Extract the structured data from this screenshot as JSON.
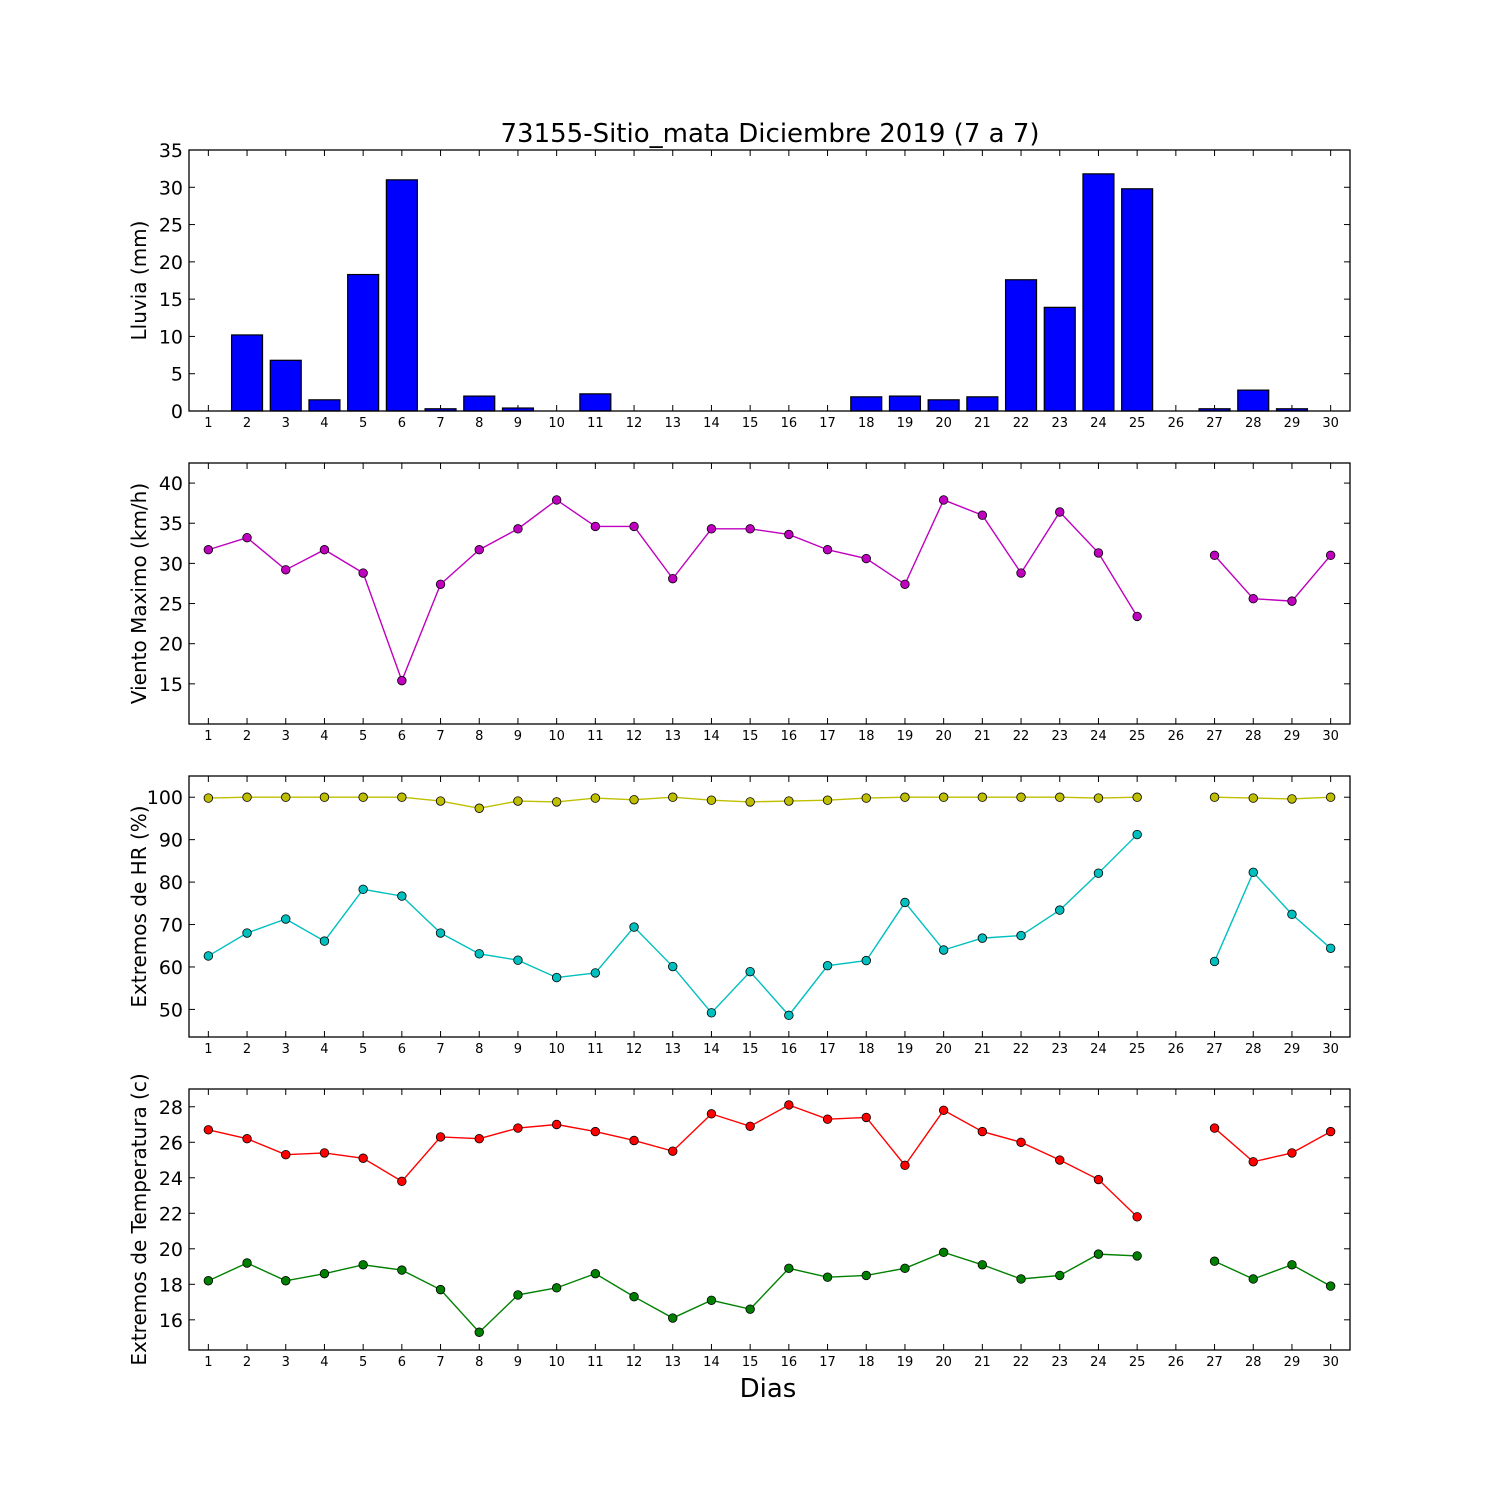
{
  "title": "73155-Sitio_mata Diciembre 2019  (7 a 7)",
  "xlabel": "Dias",
  "chart_data": [
    {
      "type": "bar",
      "ylabel": "Lluvia (mm)",
      "ylim": [
        0,
        35
      ],
      "yticks": [
        0,
        5,
        10,
        15,
        20,
        25,
        30,
        35
      ],
      "categories": [
        1,
        2,
        3,
        4,
        5,
        6,
        7,
        8,
        9,
        10,
        11,
        12,
        13,
        14,
        15,
        16,
        17,
        18,
        19,
        20,
        21,
        22,
        23,
        24,
        25,
        26,
        27,
        28,
        29,
        30
      ],
      "series": [
        {
          "color": "#0000ff",
          "values": [
            0,
            10.2,
            6.8,
            1.5,
            18.3,
            31.0,
            0.3,
            2.0,
            0.4,
            0,
            2.3,
            0,
            0,
            0,
            0,
            0,
            0,
            1.9,
            2.0,
            1.5,
            1.9,
            17.6,
            13.9,
            31.8,
            29.8,
            0,
            0.3,
            2.8,
            0.3,
            0
          ]
        }
      ]
    },
    {
      "type": "line",
      "ylabel": "Viento Maximo (km/h)",
      "ylim": [
        10,
        42.5
      ],
      "yticks": [
        15,
        20,
        25,
        30,
        35,
        40
      ],
      "x": [
        1,
        2,
        3,
        4,
        5,
        6,
        7,
        8,
        9,
        10,
        11,
        12,
        13,
        14,
        15,
        16,
        17,
        18,
        19,
        20,
        21,
        22,
        23,
        24,
        25,
        26,
        27,
        28,
        29,
        30
      ],
      "series": [
        {
          "color": "#bf00bf",
          "values": [
            31.7,
            33.2,
            29.2,
            31.7,
            28.8,
            15.4,
            27.4,
            31.7,
            34.3,
            37.9,
            34.6,
            34.6,
            28.1,
            34.3,
            34.3,
            33.6,
            31.7,
            30.6,
            27.4,
            37.9,
            36.0,
            28.8,
            36.4,
            31.3,
            23.4,
            null,
            31.0,
            25.6,
            25.3,
            31.0
          ]
        }
      ]
    },
    {
      "type": "line",
      "ylabel": "Extremos de HR (%)",
      "ylim": [
        43.5,
        105
      ],
      "yticks": [
        50,
        60,
        70,
        80,
        90,
        100
      ],
      "x": [
        1,
        2,
        3,
        4,
        5,
        6,
        7,
        8,
        9,
        10,
        11,
        12,
        13,
        14,
        15,
        16,
        17,
        18,
        19,
        20,
        21,
        22,
        23,
        24,
        25,
        26,
        27,
        28,
        29,
        30
      ],
      "series": [
        {
          "color": "#bfbf00",
          "values": [
            99.8,
            100,
            100,
            100,
            100,
            100,
            99.1,
            97.4,
            99.1,
            98.9,
            99.8,
            99.4,
            100,
            99.3,
            98.9,
            99.1,
            99.3,
            99.8,
            100,
            100,
            100,
            100,
            100,
            99.8,
            100,
            null,
            100,
            99.8,
            99.6,
            100
          ]
        },
        {
          "color": "#00bfbf",
          "values": [
            62.6,
            68.0,
            71.3,
            66.1,
            78.3,
            76.7,
            68.0,
            63.1,
            61.6,
            57.5,
            58.6,
            69.4,
            60.1,
            49.2,
            58.9,
            48.6,
            60.3,
            61.5,
            75.2,
            64.0,
            66.8,
            67.4,
            73.4,
            82.1,
            91.2,
            null,
            61.3,
            82.3,
            72.4,
            64.4
          ]
        }
      ]
    },
    {
      "type": "line",
      "ylabel": "Extremos de Temperatura (c)",
      "ylim": [
        14.3,
        29.0
      ],
      "yticks": [
        16,
        18,
        20,
        22,
        24,
        26,
        28
      ],
      "x": [
        1,
        2,
        3,
        4,
        5,
        6,
        7,
        8,
        9,
        10,
        11,
        12,
        13,
        14,
        15,
        16,
        17,
        18,
        19,
        20,
        21,
        22,
        23,
        24,
        25,
        26,
        27,
        28,
        29,
        30
      ],
      "series": [
        {
          "color": "#ff0000",
          "values": [
            26.7,
            26.2,
            25.3,
            25.4,
            25.1,
            23.8,
            26.3,
            26.2,
            26.8,
            27.0,
            26.6,
            26.1,
            25.5,
            27.6,
            26.9,
            28.1,
            27.3,
            27.4,
            24.7,
            27.8,
            26.6,
            26.0,
            25.0,
            23.9,
            21.8,
            null,
            26.8,
            24.9,
            25.4,
            26.6
          ]
        },
        {
          "color": "#008000",
          "values": [
            18.2,
            19.2,
            18.2,
            18.6,
            19.1,
            18.8,
            17.7,
            15.3,
            17.4,
            17.8,
            18.6,
            17.3,
            16.1,
            17.1,
            16.6,
            18.9,
            18.4,
            18.5,
            18.9,
            19.8,
            19.1,
            18.3,
            18.5,
            19.7,
            19.6,
            null,
            19.3,
            18.3,
            19.1,
            17.9
          ]
        }
      ]
    }
  ]
}
